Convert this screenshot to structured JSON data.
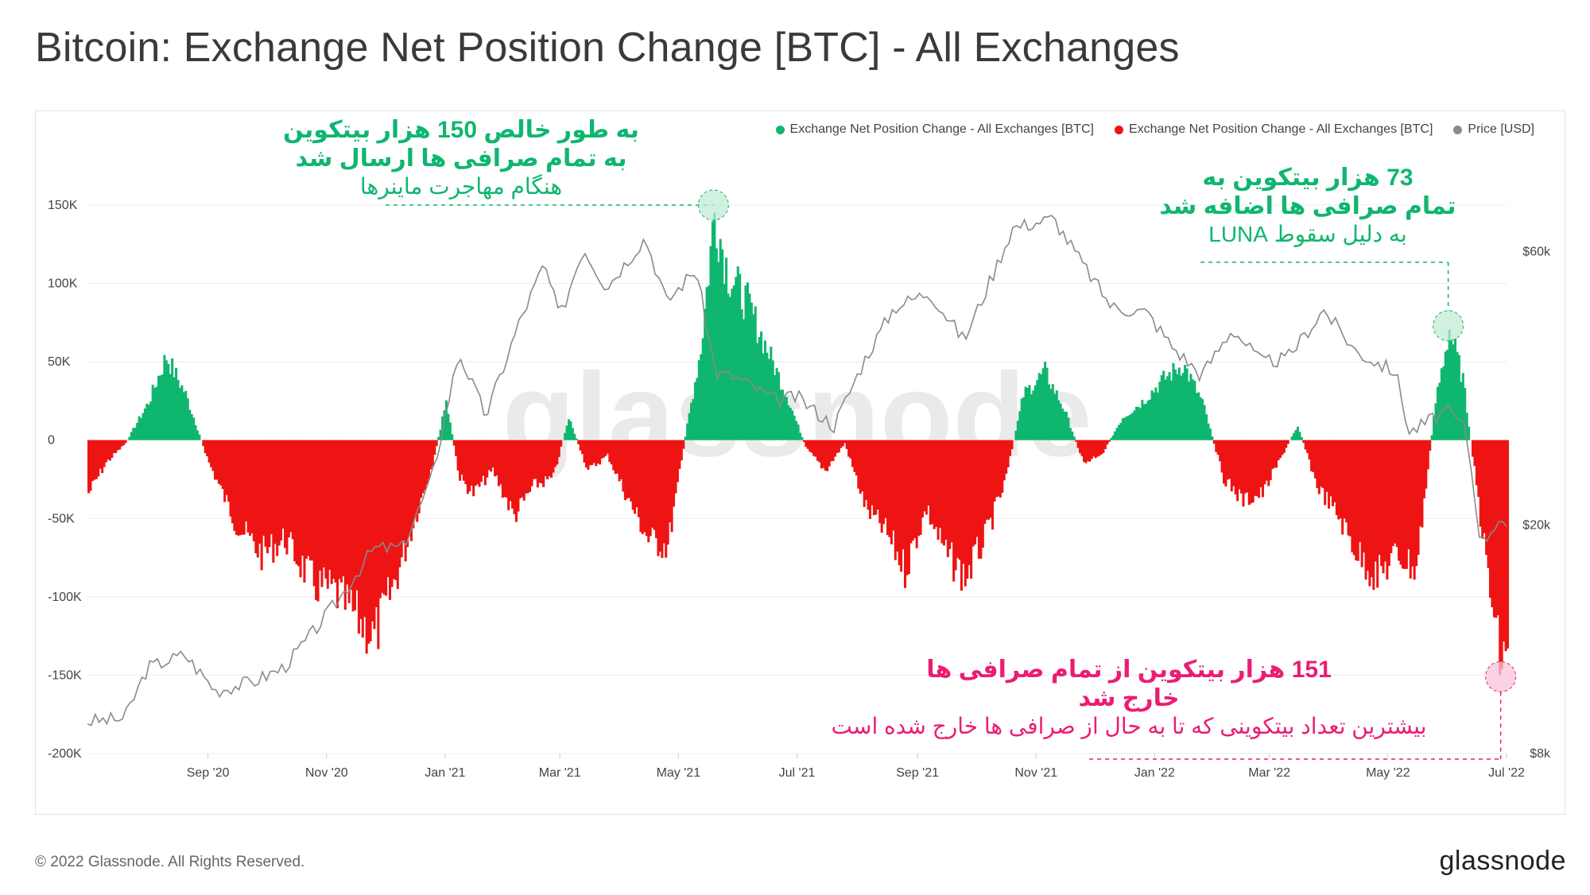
{
  "title": "Bitcoin: Exchange Net Position Change [BTC] - All Exchanges",
  "footer": {
    "copyright": "© 2022 Glassnode. All Rights Reserved.",
    "logo": "glassnode"
  },
  "watermark": "glassnode",
  "colors": {
    "positive": "#0fb66f",
    "negative": "#ee1414",
    "price": "#8a8a8a",
    "annotation_green": "#0fb66f",
    "annotation_pink": "#ec1c74"
  },
  "legend": [
    {
      "label": "Exchange Net Position Change - All Exchanges [BTC]",
      "color": "#0fb66f"
    },
    {
      "label": "Exchange Net Position Change - All Exchanges [BTC]",
      "color": "#ee1414"
    },
    {
      "label": "Price [USD]",
      "color": "#8a8a8a"
    }
  ],
  "annotations": {
    "may21": {
      "line1": "به طور خالص 150 هزار بیتکوین",
      "line2": "به تمام صرافی ها ارسال شد",
      "line3": "هنگام مهاجرت ماینرها"
    },
    "luna": {
      "line1": "73 هزار بیتکوین به",
      "line2": "تمام صرافی ها اضافه شد",
      "line3": "به دلیل سقوط LUNA"
    },
    "jun22": {
      "line1": "151 هزار بیتکوین از تمام صرافی ها",
      "line2": "خارج شد",
      "line3": "بیشترین تعداد بیتکوینی که تا به حال از صرافی ها خارج شده است"
    }
  },
  "chart_data": {
    "type": "bar",
    "x_ticks": [
      "Sep '20",
      "Nov '20",
      "Jan '21",
      "Mar '21",
      "May '21",
      "Jul '21",
      "Sep '21",
      "Nov '21",
      "Jan '22",
      "Mar '22",
      "May '22",
      "Jul '22"
    ],
    "y_left_ticks": [
      "150K",
      "100K",
      "50K",
      "0",
      "-50K",
      "-100K",
      "-150K",
      "-200K"
    ],
    "y_left_range": [
      -200000,
      150000
    ],
    "y_right_ticks": [
      "$60k",
      "$20k",
      "$8k"
    ],
    "y_right_scale": "log",
    "x_range": [
      "2020-07-01",
      "2022-07-01"
    ],
    "series": [
      {
        "name": "Exchange Net Position Change - All Exchanges [BTC]",
        "unit": "BTC",
        "points": [
          [
            "2020-07-01",
            -35000
          ],
          [
            "2020-07-10",
            -15000
          ],
          [
            "2020-07-20",
            -2000
          ],
          [
            "2020-08-01",
            25000
          ],
          [
            "2020-08-10",
            55000
          ],
          [
            "2020-08-20",
            30000
          ],
          [
            "2020-09-01",
            -15000
          ],
          [
            "2020-09-15",
            -55000
          ],
          [
            "2020-09-28",
            -75000
          ],
          [
            "2020-10-10",
            -65000
          ],
          [
            "2020-10-25",
            -95000
          ],
          [
            "2020-11-05",
            -100000
          ],
          [
            "2020-11-15",
            -115000
          ],
          [
            "2020-11-25",
            -130000
          ],
          [
            "2020-12-05",
            -95000
          ],
          [
            "2020-12-15",
            -55000
          ],
          [
            "2020-12-25",
            -15000
          ],
          [
            "2021-01-01",
            25000
          ],
          [
            "2021-01-08",
            -25000
          ],
          [
            "2021-01-15",
            -35000
          ],
          [
            "2021-01-25",
            -20000
          ],
          [
            "2021-02-05",
            -50000
          ],
          [
            "2021-02-15",
            -30000
          ],
          [
            "2021-02-25",
            -25000
          ],
          [
            "2021-03-05",
            15000
          ],
          [
            "2021-03-15",
            -20000
          ],
          [
            "2021-03-25",
            -10000
          ],
          [
            "2021-04-05",
            -40000
          ],
          [
            "2021-04-15",
            -65000
          ],
          [
            "2021-04-25",
            -70000
          ],
          [
            "2021-05-05",
            10000
          ],
          [
            "2021-05-12",
            60000
          ],
          [
            "2021-05-19",
            150000
          ],
          [
            "2021-05-26",
            110000
          ],
          [
            "2021-06-05",
            90000
          ],
          [
            "2021-06-15",
            60000
          ],
          [
            "2021-06-25",
            30000
          ],
          [
            "2021-07-05",
            -5000
          ],
          [
            "2021-07-15",
            -20000
          ],
          [
            "2021-07-25",
            -2000
          ],
          [
            "2021-08-05",
            -45000
          ],
          [
            "2021-08-15",
            -60000
          ],
          [
            "2021-08-25",
            -85000
          ],
          [
            "2021-09-05",
            -45000
          ],
          [
            "2021-09-15",
            -75000
          ],
          [
            "2021-09-25",
            -90000
          ],
          [
            "2021-10-05",
            -65000
          ],
          [
            "2021-10-15",
            -30000
          ],
          [
            "2021-10-25",
            30000
          ],
          [
            "2021-11-05",
            45000
          ],
          [
            "2021-11-15",
            20000
          ],
          [
            "2021-11-25",
            -15000
          ],
          [
            "2021-12-05",
            -8000
          ],
          [
            "2021-12-15",
            15000
          ],
          [
            "2021-12-25",
            25000
          ],
          [
            "2022-01-05",
            40000
          ],
          [
            "2022-01-15",
            50000
          ],
          [
            "2022-01-25",
            25000
          ],
          [
            "2022-02-05",
            -25000
          ],
          [
            "2022-02-15",
            -40000
          ],
          [
            "2022-02-25",
            -35000
          ],
          [
            "2022-03-05",
            -15000
          ],
          [
            "2022-03-15",
            10000
          ],
          [
            "2022-03-25",
            -30000
          ],
          [
            "2022-04-05",
            -50000
          ],
          [
            "2022-04-15",
            -75000
          ],
          [
            "2022-04-25",
            -90000
          ],
          [
            "2022-05-05",
            -75000
          ],
          [
            "2022-05-15",
            -85000
          ],
          [
            "2022-05-25",
            25000
          ],
          [
            "2022-06-01",
            73000
          ],
          [
            "2022-06-08",
            40000
          ],
          [
            "2022-06-15",
            -30000
          ],
          [
            "2022-06-22",
            -100000
          ],
          [
            "2022-06-28",
            -151000
          ],
          [
            "2022-07-01",
            -130000
          ]
        ]
      },
      {
        "name": "Price [USD]",
        "unit": "USD",
        "points": [
          [
            "2020-07-01",
            9100
          ],
          [
            "2020-07-20",
            9200
          ],
          [
            "2020-08-01",
            11300
          ],
          [
            "2020-08-20",
            11900
          ],
          [
            "2020-09-05",
            10300
          ],
          [
            "2020-09-25",
            10700
          ],
          [
            "2020-10-10",
            11300
          ],
          [
            "2020-10-25",
            13000
          ],
          [
            "2020-11-10",
            15300
          ],
          [
            "2020-11-25",
            18200
          ],
          [
            "2020-12-10",
            18300
          ],
          [
            "2020-12-25",
            24000
          ],
          [
            "2021-01-08",
            40000
          ],
          [
            "2021-01-22",
            31000
          ],
          [
            "2021-02-08",
            45000
          ],
          [
            "2021-02-21",
            57000
          ],
          [
            "2021-03-01",
            46000
          ],
          [
            "2021-03-13",
            61000
          ],
          [
            "2021-03-25",
            52000
          ],
          [
            "2021-04-14",
            63500
          ],
          [
            "2021-04-25",
            49000
          ],
          [
            "2021-05-10",
            56000
          ],
          [
            "2021-05-20",
            37000
          ],
          [
            "2021-06-01",
            36000
          ],
          [
            "2021-06-20",
            33000
          ],
          [
            "2021-07-01",
            33500
          ],
          [
            "2021-07-20",
            29800
          ],
          [
            "2021-08-05",
            39000
          ],
          [
            "2021-08-20",
            48000
          ],
          [
            "2021-09-07",
            51000
          ],
          [
            "2021-09-25",
            42000
          ],
          [
            "2021-10-10",
            55000
          ],
          [
            "2021-10-20",
            66000
          ],
          [
            "2021-11-10",
            68500
          ],
          [
            "2021-11-25",
            57000
          ],
          [
            "2021-12-10",
            48000
          ],
          [
            "2021-12-28",
            47000
          ],
          [
            "2022-01-10",
            41000
          ],
          [
            "2022-01-25",
            36500
          ],
          [
            "2022-02-10",
            44000
          ],
          [
            "2022-02-25",
            38500
          ],
          [
            "2022-03-10",
            39000
          ],
          [
            "2022-03-29",
            47500
          ],
          [
            "2022-04-15",
            40000
          ],
          [
            "2022-05-05",
            37000
          ],
          [
            "2022-05-12",
            29000
          ],
          [
            "2022-05-31",
            31700
          ],
          [
            "2022-06-10",
            29500
          ],
          [
            "2022-06-18",
            18500
          ],
          [
            "2022-06-28",
            20800
          ],
          [
            "2022-07-01",
            19500
          ]
        ]
      }
    ]
  }
}
